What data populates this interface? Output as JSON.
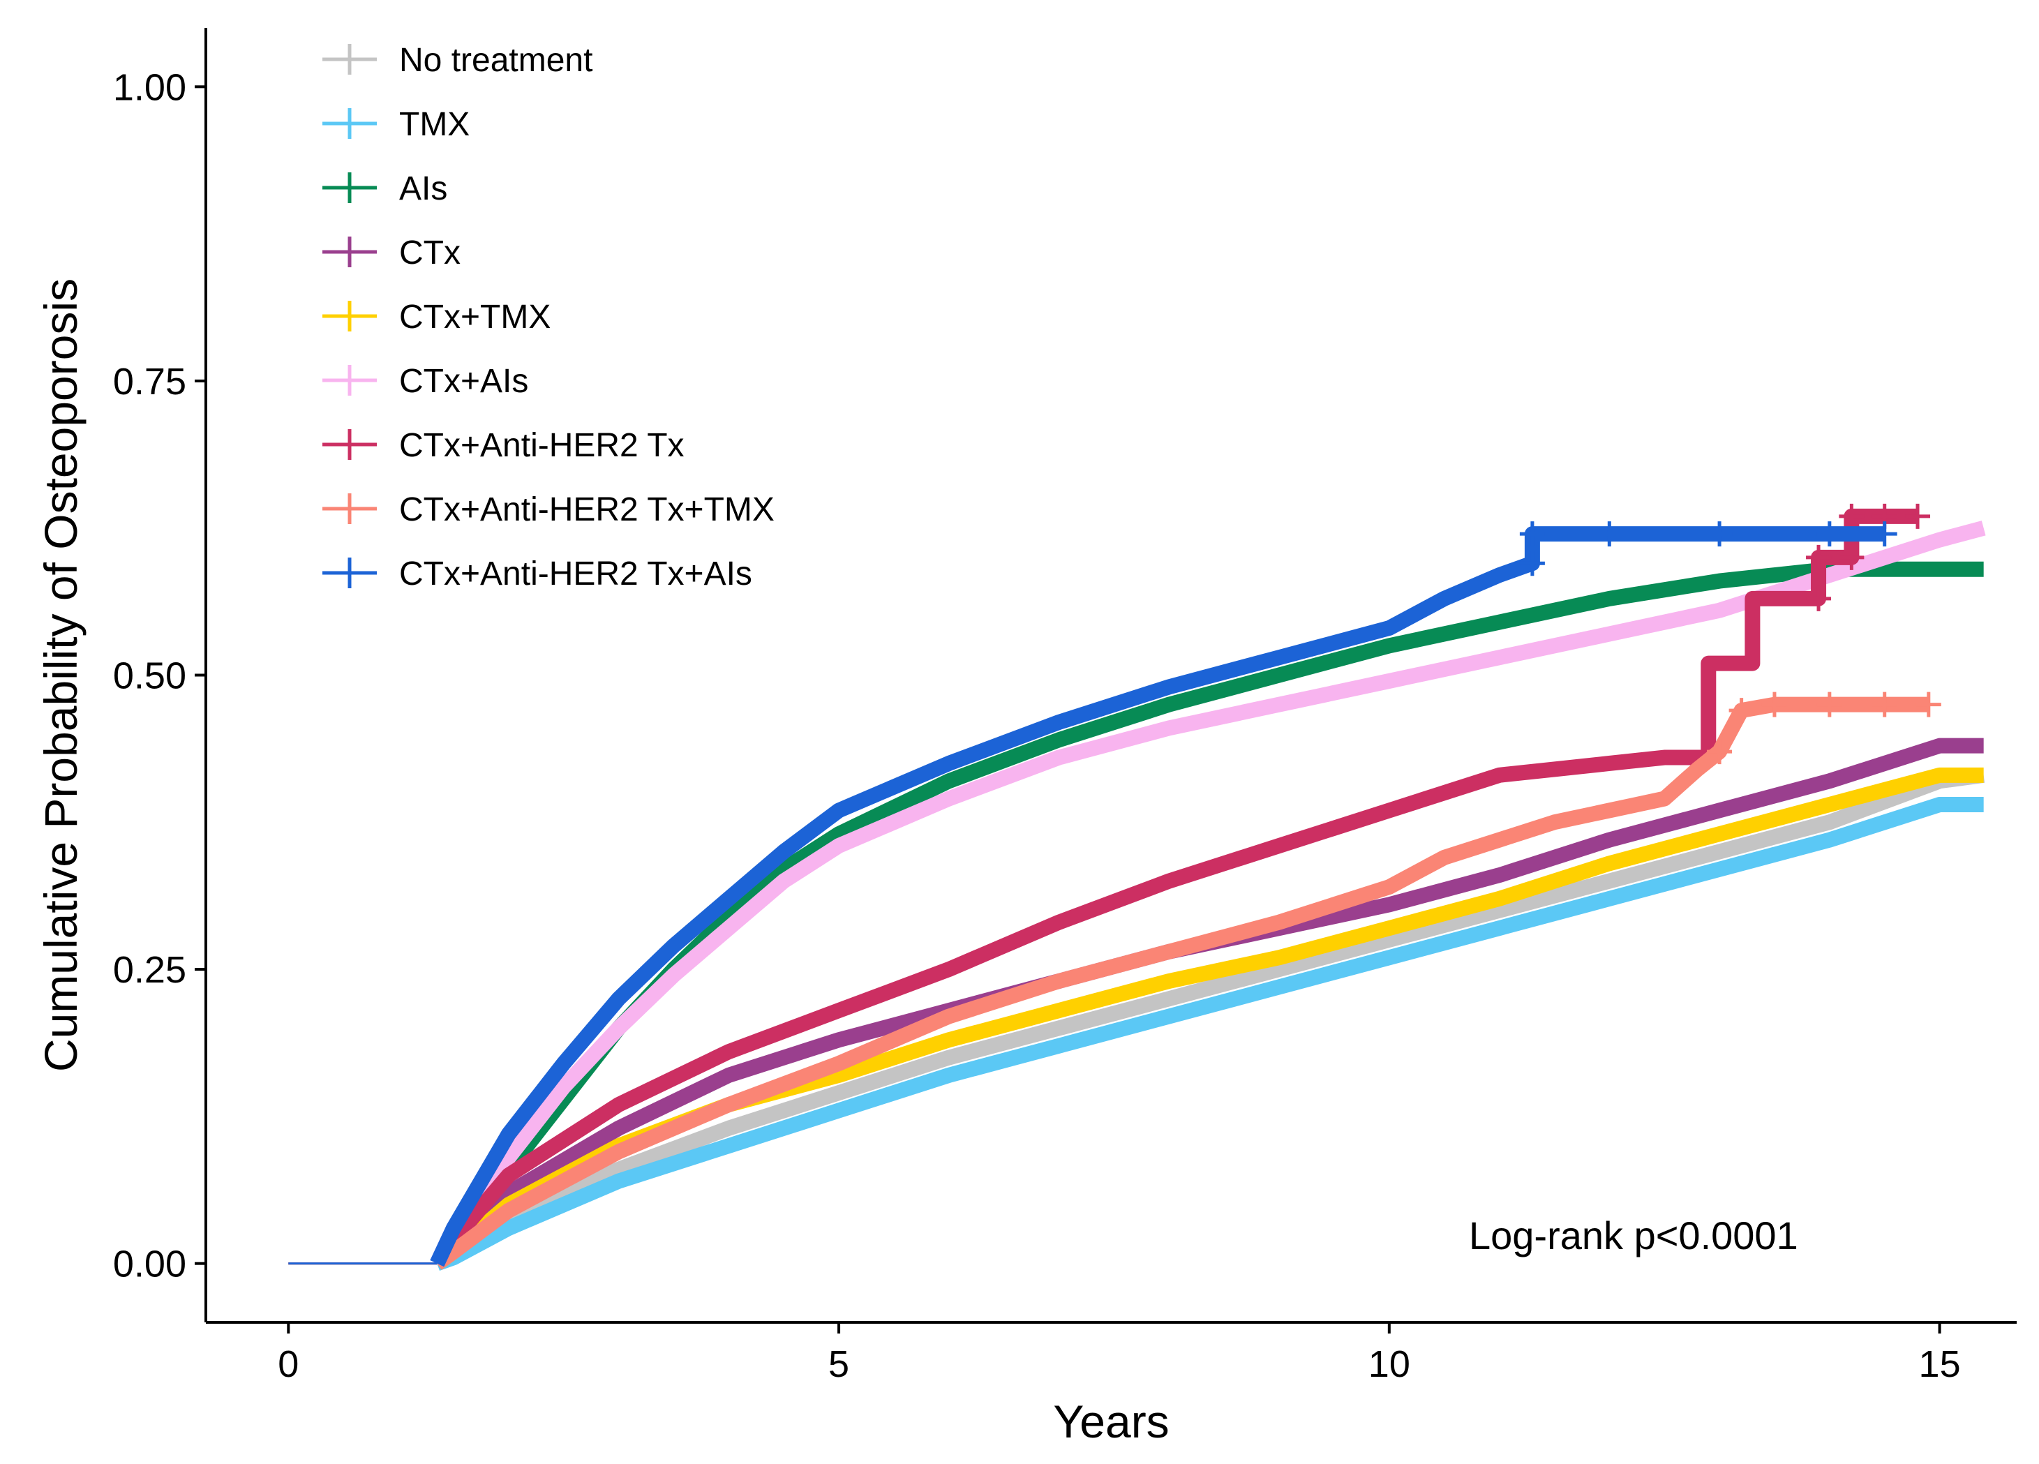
{
  "chart_data": {
    "type": "line",
    "title": "",
    "xlabel": "Years",
    "ylabel": "Cumulative Probability of Osteoporosis",
    "xlim": [
      -0.75,
      15.7
    ],
    "ylim": [
      -0.05,
      1.05
    ],
    "x_ticks": [
      0,
      5,
      10,
      15
    ],
    "x_tick_labels": [
      "0",
      "5",
      "10",
      "15"
    ],
    "y_ticks": [
      0,
      0.25,
      0.5,
      0.75,
      1.0
    ],
    "y_tick_labels": [
      "0.00",
      "0.25",
      "0.50",
      "0.75",
      "1.00"
    ],
    "grid": false,
    "legend_position": "top-left",
    "annotation": "Log-rank p<0.0001",
    "series": [
      {
        "name": "No treatment",
        "color": "#c4c4c4",
        "step": false,
        "censor_marks": false,
        "x": [
          0,
          1.35,
          1.5,
          2,
          3,
          4,
          5,
          6,
          7,
          8,
          9,
          10,
          11,
          12,
          13,
          14,
          15,
          15.4
        ],
        "y": [
          0,
          0,
          0.01,
          0.04,
          0.08,
          0.115,
          0.145,
          0.175,
          0.2,
          0.225,
          0.25,
          0.275,
          0.3,
          0.325,
          0.35,
          0.375,
          0.41,
          0.415
        ]
      },
      {
        "name": "TMX",
        "color": "#5bc8f5",
        "step": false,
        "censor_marks": false,
        "x": [
          0,
          1.35,
          1.5,
          2,
          3,
          4,
          5,
          6,
          7,
          8,
          9,
          10,
          11,
          12,
          13,
          14,
          15,
          15.4
        ],
        "y": [
          0,
          0,
          0.005,
          0.03,
          0.07,
          0.1,
          0.13,
          0.16,
          0.185,
          0.21,
          0.235,
          0.26,
          0.285,
          0.31,
          0.335,
          0.36,
          0.39,
          0.39
        ]
      },
      {
        "name": "AIs",
        "color": "#078b55",
        "step": false,
        "censor_marks": false,
        "x": [
          0,
          1.35,
          1.5,
          2,
          2.5,
          3,
          3.5,
          4,
          4.5,
          5,
          6,
          7,
          8,
          9,
          10,
          11,
          12,
          13,
          14,
          15,
          15.4
        ],
        "y": [
          0,
          0,
          0.02,
          0.08,
          0.14,
          0.2,
          0.25,
          0.295,
          0.335,
          0.365,
          0.41,
          0.445,
          0.475,
          0.5,
          0.525,
          0.545,
          0.565,
          0.58,
          0.59,
          0.59,
          0.59
        ]
      },
      {
        "name": "CTx",
        "color": "#9a3f8e",
        "step": false,
        "censor_marks": false,
        "x": [
          0,
          1.35,
          1.5,
          2,
          3,
          4,
          5,
          6,
          7,
          8,
          9,
          10,
          11,
          12,
          13,
          14,
          15,
          15.4
        ],
        "y": [
          0,
          0,
          0.015,
          0.06,
          0.115,
          0.16,
          0.19,
          0.215,
          0.24,
          0.265,
          0.285,
          0.305,
          0.33,
          0.36,
          0.385,
          0.41,
          0.44,
          0.44
        ]
      },
      {
        "name": "CTx+TMX",
        "color": "#ffd000",
        "step": false,
        "censor_marks": false,
        "x": [
          0,
          1.35,
          1.5,
          2,
          3,
          4,
          5,
          6,
          7,
          8,
          9,
          10,
          11,
          12,
          13,
          14,
          15,
          15.4
        ],
        "y": [
          0,
          0,
          0.01,
          0.05,
          0.1,
          0.135,
          0.16,
          0.19,
          0.215,
          0.24,
          0.26,
          0.285,
          0.31,
          0.34,
          0.365,
          0.39,
          0.415,
          0.415
        ]
      },
      {
        "name": "CTx+AIs",
        "color": "#f8b4ef",
        "step": false,
        "censor_marks": false,
        "x": [
          0,
          1.35,
          1.5,
          2,
          2.5,
          3,
          3.5,
          4,
          4.5,
          5,
          6,
          7,
          8,
          9,
          10,
          11,
          12,
          13,
          14,
          15,
          15.4
        ],
        "y": [
          0,
          0,
          0.03,
          0.09,
          0.15,
          0.2,
          0.245,
          0.285,
          0.325,
          0.355,
          0.395,
          0.43,
          0.455,
          0.475,
          0.495,
          0.515,
          0.535,
          0.555,
          0.585,
          0.615,
          0.625
        ]
      },
      {
        "name": "CTx+Anti-HER2 Tx",
        "color": "#cc2f62",
        "step": false,
        "censor_marks": true,
        "x": [
          0,
          1.35,
          1.5,
          2,
          3,
          4,
          5,
          6,
          7,
          8,
          9,
          9.5,
          10,
          10.5,
          11,
          11.5,
          12,
          12.5,
          12.9,
          12.9,
          13.3,
          13.3,
          13.9,
          13.9,
          14.2,
          14.2,
          14.5,
          14.8
        ],
        "y": [
          0,
          0,
          0.02,
          0.075,
          0.135,
          0.18,
          0.215,
          0.25,
          0.29,
          0.325,
          0.355,
          0.37,
          0.385,
          0.4,
          0.415,
          0.42,
          0.425,
          0.43,
          0.43,
          0.51,
          0.51,
          0.565,
          0.565,
          0.6,
          0.6,
          0.635,
          0.635,
          0.635
        ]
      },
      {
        "name": "CTx+Anti-HER2 Tx+TMX",
        "color": "#fa8575",
        "step": false,
        "censor_marks": true,
        "x": [
          0,
          1.35,
          1.5,
          2,
          3,
          4,
          5,
          6,
          7,
          8,
          9,
          10,
          10.5,
          11,
          11.5,
          12,
          12.5,
          12.8,
          13,
          13.2,
          13.5,
          14,
          14.5,
          14.9
        ],
        "y": [
          0,
          0,
          0.01,
          0.045,
          0.095,
          0.135,
          0.17,
          0.21,
          0.24,
          0.265,
          0.29,
          0.32,
          0.345,
          0.36,
          0.375,
          0.385,
          0.395,
          0.42,
          0.435,
          0.47,
          0.475,
          0.475,
          0.475,
          0.475
        ]
      },
      {
        "name": "CTx+Anti-HER2 Tx+AIs",
        "color": "#1c63d6",
        "step": false,
        "censor_marks": true,
        "x": [
          0,
          1.35,
          1.5,
          2,
          2.5,
          3,
          3.5,
          4,
          4.5,
          5,
          6,
          7,
          8,
          9,
          10,
          10.5,
          11,
          11.3,
          11.3,
          12,
          13,
          14,
          14.5
        ],
        "y": [
          0,
          0,
          0.03,
          0.11,
          0.17,
          0.225,
          0.27,
          0.31,
          0.35,
          0.385,
          0.425,
          0.46,
          0.49,
          0.515,
          0.54,
          0.565,
          0.585,
          0.595,
          0.62,
          0.62,
          0.62,
          0.62,
          0.62
        ]
      }
    ]
  }
}
